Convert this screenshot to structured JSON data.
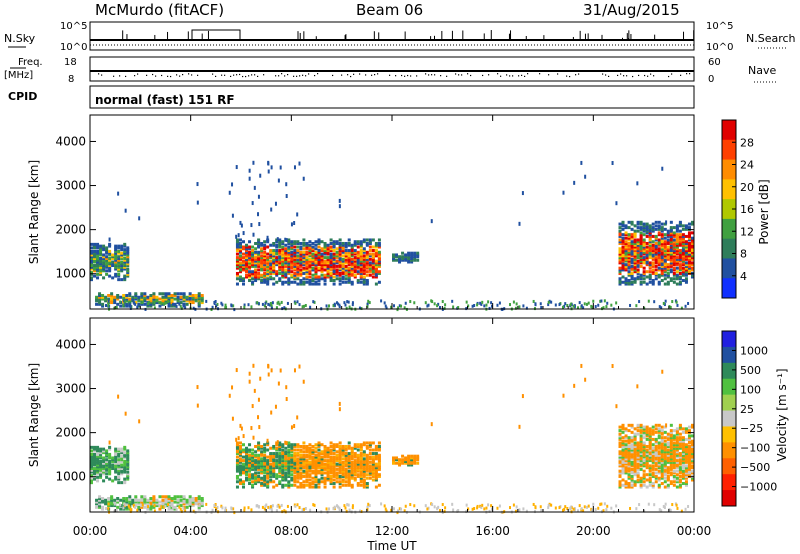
{
  "header": {
    "station": "McMurdo (fitACF)",
    "beam": "Beam 06",
    "date": "31/Aug/2015"
  },
  "strip_panels": {
    "nsky_label": "N.Sky",
    "nsearch_label": "N.Search",
    "nsky_ticks": [
      "10^5",
      "10^0"
    ],
    "nsearch_ticks": [
      "10^5",
      "10^0"
    ],
    "freq_label": "Freq.",
    "freq_unit": "[MHz]",
    "freq_ticks": [
      "18",
      "8"
    ],
    "nave_label": "Nave",
    "nave_ticks": [
      "60",
      "0"
    ],
    "cpid_label": "CPID",
    "cpid_text": "normal (fast) 151 RF"
  },
  "colorbars": {
    "power": {
      "label": "Power [dB]",
      "ticks": [
        "28",
        "24",
        "20",
        "16",
        "12",
        "8",
        "4"
      ],
      "colors": [
        "#e00000",
        "#ff4000",
        "#ff8c00",
        "#ffc000",
        "#b0c800",
        "#40a040",
        "#2e7d5a",
        "#2050a0",
        "#1030ff"
      ]
    },
    "velocity": {
      "label": "Velocity [m s⁻¹]",
      "ticks": [
        "1000",
        "500",
        "100",
        "25",
        "−25",
        "−100",
        "−500",
        "−1000"
      ],
      "colors": [
        "#2020e0",
        "#2050a0",
        "#2e8a5a",
        "#50c040",
        "#a0d050",
        "#c8c8c8",
        "#ffc000",
        "#ff9000",
        "#ff6000",
        "#ff2000",
        "#e00000"
      ]
    }
  },
  "chart_data": [
    {
      "type": "heatmap",
      "title": "Power",
      "ylabel": "Slant Range [km]",
      "yticks": [
        "1000",
        "2000",
        "3000",
        "4000"
      ],
      "ylim": [
        200,
        4600
      ],
      "xlim": [
        "00:00",
        "24:00"
      ],
      "scatter_regions": [
        {
          "t0": 0.0,
          "t1": 1.5,
          "r0": 900,
          "r1": 1700,
          "level": "moderate"
        },
        {
          "t0": 0.2,
          "t1": 4.5,
          "r0": 300,
          "r1": 600,
          "level": "moderate"
        },
        {
          "t0": 5.8,
          "t1": 11.5,
          "r0": 800,
          "r1": 1800,
          "level": "strong"
        },
        {
          "t0": 12.0,
          "t1": 13.0,
          "r0": 1300,
          "r1": 1500,
          "level": "weak"
        },
        {
          "t0": 21.0,
          "t1": 24.0,
          "r0": 800,
          "r1": 2200,
          "level": "strong"
        }
      ]
    },
    {
      "type": "heatmap",
      "title": "Velocity",
      "ylabel": "Slant Range [km]",
      "yticks": [
        "1000",
        "2000",
        "3000",
        "4000"
      ],
      "ylim": [
        200,
        4600
      ],
      "xlim": [
        "00:00",
        "24:00"
      ],
      "xticks": [
        "00:00",
        "04:00",
        "08:00",
        "12:00",
        "16:00",
        "20:00",
        "00:00"
      ],
      "xlabel": "Time UT"
    }
  ]
}
